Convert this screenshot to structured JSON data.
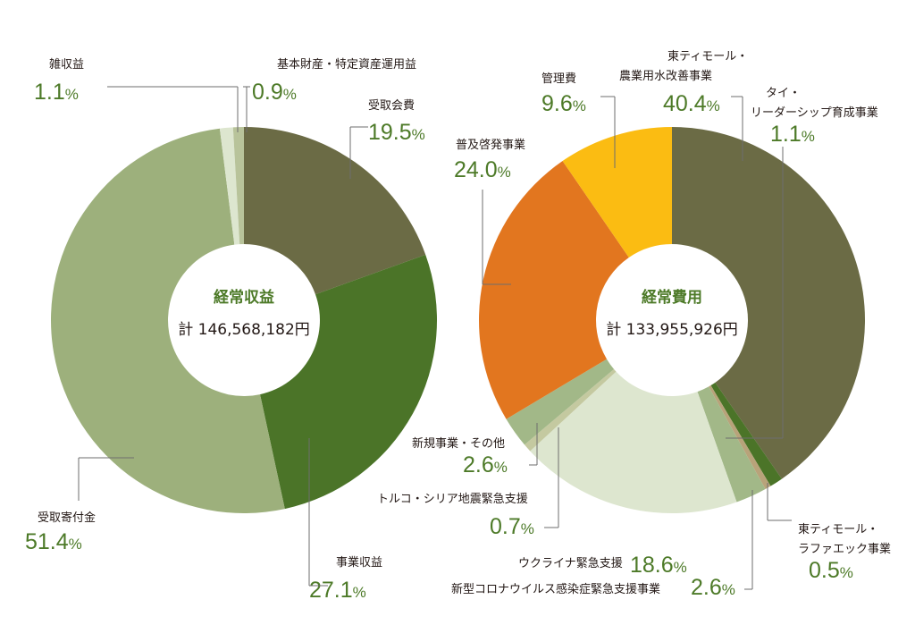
{
  "colors": {
    "label_text": "#231815",
    "percent_text": "#4d7a28",
    "leader_line": "#6e6e6e"
  },
  "chart_data": [
    {
      "type": "pie",
      "title": "経常収益",
      "total": "計 146,568,182円",
      "slices": [
        {
          "label": "受取会費",
          "value": 19.5,
          "pct_text": "19.5",
          "color": "#6b6b45"
        },
        {
          "label": "事業収益",
          "value": 27.1,
          "pct_text": "27.1",
          "color": "#4b7428"
        },
        {
          "label": "受取寄付金",
          "value": 51.4,
          "pct_text": "51.4",
          "color": "#9db07c"
        },
        {
          "label": "雑収益",
          "value": 1.1,
          "pct_text": "1.1",
          "color": "#dde6cf"
        },
        {
          "label": "基本財産・特定資産運用益",
          "value": 0.9,
          "pct_text": "0.9",
          "color": "#b8c39a"
        }
      ]
    },
    {
      "type": "pie",
      "title": "経常費用",
      "total": "計 133,955,926円",
      "slices": [
        {
          "label": "東ティモール・農業用水改善事業",
          "value": 40.4,
          "pct_text": "40.4",
          "color": "#6b6b45"
        },
        {
          "label": "タイ・リーダーシップ育成事業",
          "value": 1.1,
          "pct_text": "1.1",
          "color": "#4b7428"
        },
        {
          "label": "東ティモール・ラファエック事業",
          "value": 0.5,
          "pct_text": "0.5",
          "color": "#b8a37a"
        },
        {
          "label": "新型コロナウイルス感染症緊急支援事業",
          "value": 2.6,
          "pct_text": "2.6",
          "color": "#a2b888"
        },
        {
          "label": "ウクライナ緊急支援",
          "value": 18.6,
          "pct_text": "18.6",
          "color": "#dde6cf"
        },
        {
          "label": "トルコ・シリア地震緊急支援",
          "value": 0.7,
          "pct_text": "0.7",
          "color": "#c4c9a0"
        },
        {
          "label": "新規事業・その他",
          "value": 2.6,
          "pct_text": "2.6",
          "color": "#a2b888"
        },
        {
          "label": "普及啓発事業",
          "value": 24.0,
          "pct_text": "24.0",
          "color": "#e2761f"
        },
        {
          "label": "管理費",
          "value": 9.6,
          "pct_text": "9.6",
          "color": "#fbbc12"
        }
      ]
    }
  ]
}
